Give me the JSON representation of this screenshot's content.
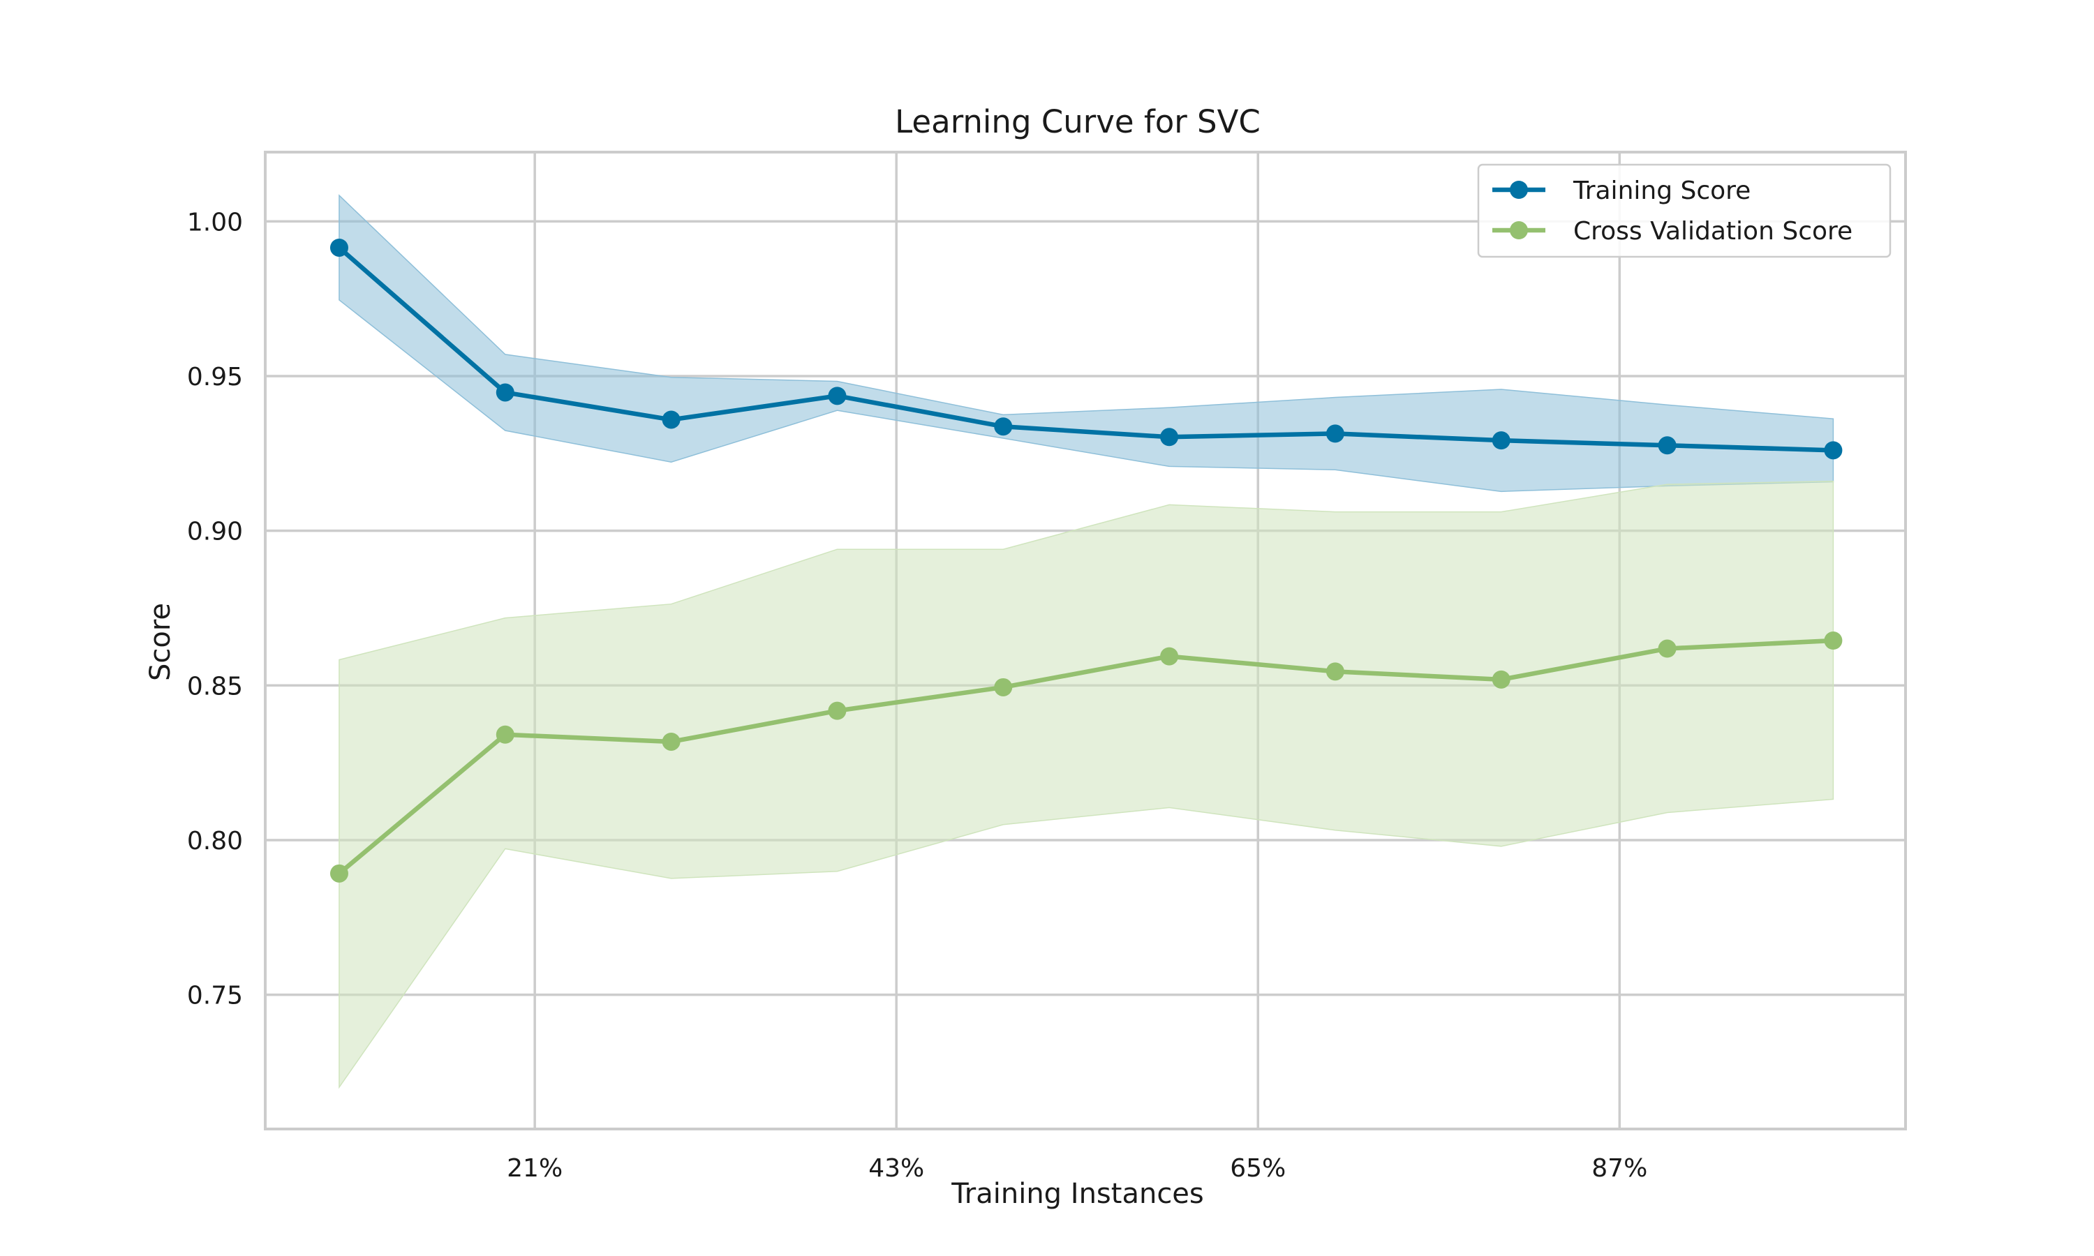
{
  "chart_data": {
    "type": "line",
    "title": "Learning Curve for SVC",
    "xlabel": "Training Instances",
    "ylabel": "Score",
    "x_ticks": [
      {
        "label": "21%",
        "value": 21
      },
      {
        "label": "43%",
        "value": 43
      },
      {
        "label": "65%",
        "value": 65
      },
      {
        "label": "87%",
        "value": 87
      }
    ],
    "y_ticks": [
      {
        "label": "0.75",
        "value": 0.75
      },
      {
        "label": "0.80",
        "value": 0.8
      },
      {
        "label": "0.85",
        "value": 0.85
      },
      {
        "label": "0.90",
        "value": 0.9
      },
      {
        "label": "0.95",
        "value": 0.95
      },
      {
        "label": "1.00",
        "value": 1.0
      }
    ],
    "xlim": [
      4.6,
      104.4
    ],
    "ylim": [
      0.7066,
      1.0224
    ],
    "x": [
      9.1,
      19.2,
      29.3,
      39.4,
      49.5,
      59.6,
      69.7,
      79.8,
      89.9,
      100.0
    ],
    "grid": true,
    "legend_position": "top-right",
    "series": [
      {
        "name": "Training Score",
        "color": "#0172a4",
        "band_color": "#8ebfd9",
        "values": [
          0.9915,
          0.9447,
          0.9359,
          0.9436,
          0.9337,
          0.9303,
          0.9314,
          0.9292,
          0.9276,
          0.926
        ],
        "upper": [
          1.0084,
          0.957,
          0.9496,
          0.9483,
          0.9375,
          0.9398,
          0.9431,
          0.9457,
          0.9407,
          0.9362
        ],
        "lower": [
          0.9746,
          0.9324,
          0.9222,
          0.9389,
          0.9299,
          0.9208,
          0.9197,
          0.9127,
          0.9145,
          0.9158
        ]
      },
      {
        "name": "Cross Validation Score",
        "color": "#94c06f",
        "band_color": "#cfe4bd",
        "values": [
          0.7892,
          0.8341,
          0.8318,
          0.8418,
          0.8494,
          0.8594,
          0.8545,
          0.8519,
          0.8619,
          0.8645
        ],
        "upper": [
          0.8583,
          0.8718,
          0.8763,
          0.894,
          0.894,
          0.9084,
          0.9061,
          0.9061,
          0.915,
          0.916
        ],
        "lower": [
          0.7201,
          0.7972,
          0.7876,
          0.7899,
          0.805,
          0.8105,
          0.8032,
          0.798,
          0.8089,
          0.8132
        ]
      }
    ]
  }
}
